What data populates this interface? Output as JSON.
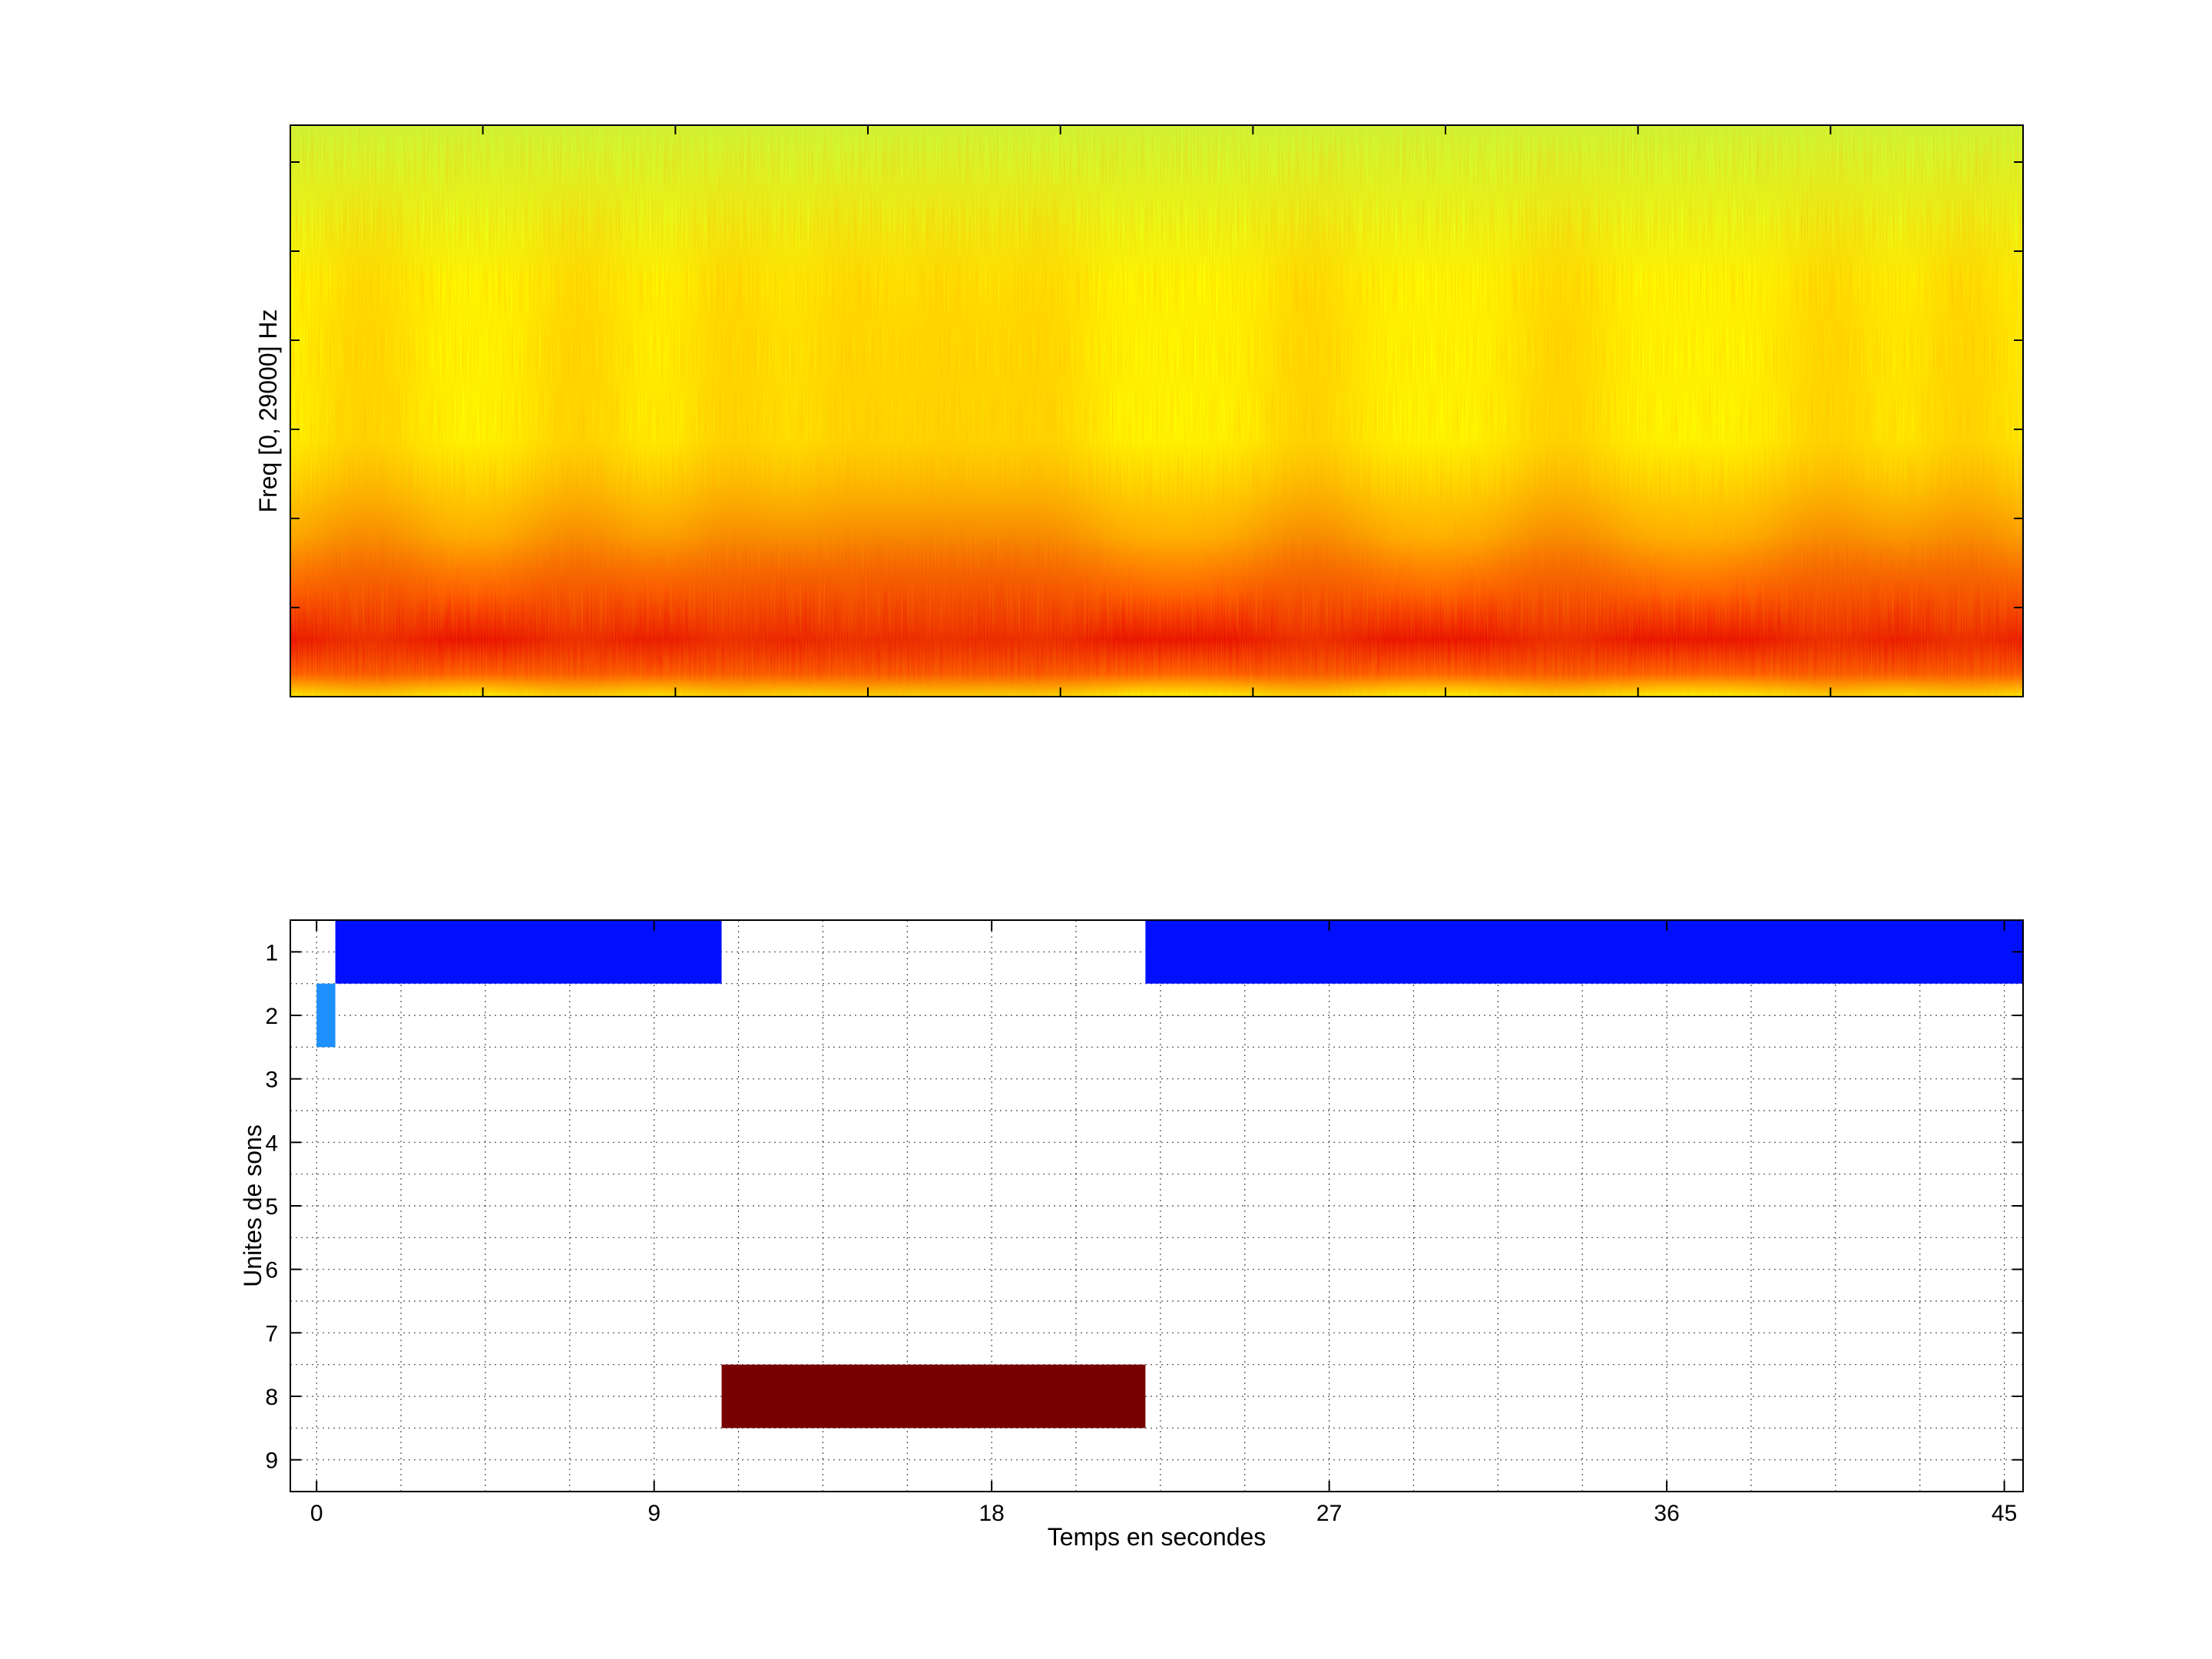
{
  "chart_data": [
    {
      "type": "heatmap",
      "name": "spectrogram",
      "ylabel": "Freq [0, 29000] Hz",
      "xlim": [
        0,
        45
      ],
      "ylim": [
        0,
        29000
      ],
      "grid": false,
      "colormap": [
        "#00c8ff",
        "#c8ff3c",
        "#ffff00",
        "#ffb400",
        "#ff5a00",
        "#e60000"
      ],
      "energy_bursts_seconds": [
        2,
        7.5,
        11.5,
        14.5,
        17,
        19.5,
        26.5,
        33,
        40,
        43.5
      ]
    },
    {
      "type": "bar",
      "name": "sound-units-timeline",
      "xlabel": "Temps en secondes",
      "ylabel": "Unites de sons",
      "xlim": [
        0,
        45
      ],
      "ylim": [
        0.5,
        9.5
      ],
      "x_ticks": [
        "0",
        "9",
        "18",
        "27",
        "36",
        "45"
      ],
      "y_ticks": [
        "1",
        "2",
        "3",
        "4",
        "5",
        "6",
        "7",
        "8",
        "9"
      ],
      "grid": true,
      "segments": [
        {
          "unit": 2,
          "start": 0,
          "end": 0.5,
          "color": "#1e90ff"
        },
        {
          "unit": 1,
          "start": 0.5,
          "end": 10.8,
          "color": "#0010ff"
        },
        {
          "unit": 8,
          "start": 10.8,
          "end": 22.1,
          "color": "#780000"
        },
        {
          "unit": 1,
          "start": 22.1,
          "end": 45.5,
          "color": "#0010ff"
        }
      ]
    }
  ]
}
